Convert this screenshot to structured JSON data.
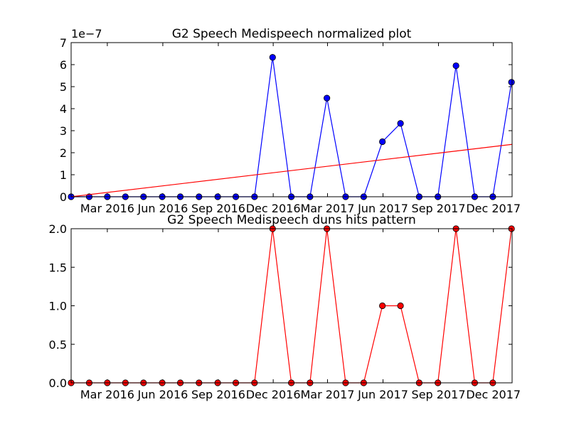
{
  "chart_data": [
    {
      "type": "line",
      "title": "G2 Speech Medispeech normalized plot",
      "xlabel": "",
      "ylabel": "",
      "y_offset_label": "1e−7",
      "x_range": [
        "2016-01-01",
        "2018-01-01"
      ],
      "ylim": [
        0,
        7
      ],
      "yticks": [
        0,
        1,
        2,
        3,
        4,
        5,
        6,
        7
      ],
      "xticks": [
        {
          "date": "2016-03-01",
          "label": "Mar 2016"
        },
        {
          "date": "2016-06-01",
          "label": "Jun 2016"
        },
        {
          "date": "2016-09-01",
          "label": "Sep 2016"
        },
        {
          "date": "2016-12-01",
          "label": "Dec 2016"
        },
        {
          "date": "2017-03-01",
          "label": "Mar 2017"
        },
        {
          "date": "2017-06-01",
          "label": "Jun 2017"
        },
        {
          "date": "2017-09-01",
          "label": "Sep 2017"
        },
        {
          "date": "2017-12-01",
          "label": "Dec 2017"
        }
      ],
      "series": [
        {
          "color": "#0000ff",
          "marker_color": "#0000ff",
          "x": [
            "2016-01-01",
            "2016-01-31",
            "2016-03-01",
            "2016-03-31",
            "2016-04-30",
            "2016-05-31",
            "2016-06-30",
            "2016-07-31",
            "2016-08-31",
            "2016-09-30",
            "2016-10-31",
            "2016-11-30",
            "2016-12-31",
            "2017-01-31",
            "2017-02-28",
            "2017-03-31",
            "2017-04-30",
            "2017-05-31",
            "2017-06-30",
            "2017-07-31",
            "2017-08-31",
            "2017-09-30",
            "2017-10-31",
            "2017-11-30",
            "2017-12-31"
          ],
          "y": [
            0,
            0,
            0,
            0,
            0,
            0,
            0,
            0,
            0,
            0,
            0,
            6.33,
            0,
            0,
            4.48,
            0,
            0,
            2.5,
            3.33,
            0,
            0,
            5.95,
            0,
            0,
            5.2
          ]
        },
        {
          "color": "#ff0000",
          "line_only": true,
          "x": [
            "2016-01-01",
            "2018-01-01"
          ],
          "y": [
            0,
            2.38
          ]
        }
      ],
      "grid": false
    },
    {
      "type": "line",
      "title": "G2 Speech Medispeech duns hits pattern",
      "xlabel": "",
      "ylabel": "",
      "x_range": [
        "2016-01-01",
        "2018-01-01"
      ],
      "ylim": [
        0,
        2
      ],
      "yticks": [
        "0.0",
        "0.5",
        "1.0",
        "1.5",
        "2.0"
      ],
      "xticks": [
        {
          "date": "2016-03-01",
          "label": "Mar 2016"
        },
        {
          "date": "2016-06-01",
          "label": "Jun 2016"
        },
        {
          "date": "2016-09-01",
          "label": "Sep 2016"
        },
        {
          "date": "2016-12-01",
          "label": "Dec 2016"
        },
        {
          "date": "2017-03-01",
          "label": "Mar 2017"
        },
        {
          "date": "2017-06-01",
          "label": "Jun 2017"
        },
        {
          "date": "2017-09-01",
          "label": "Sep 2017"
        },
        {
          "date": "2017-12-01",
          "label": "Dec 2017"
        }
      ],
      "series": [
        {
          "color": "#ff0000",
          "marker_color": "#ff0000",
          "x": [
            "2016-01-01",
            "2016-01-31",
            "2016-03-01",
            "2016-03-31",
            "2016-04-30",
            "2016-05-31",
            "2016-06-30",
            "2016-07-31",
            "2016-08-31",
            "2016-09-30",
            "2016-10-31",
            "2016-11-30",
            "2016-12-31",
            "2017-01-31",
            "2017-02-28",
            "2017-03-31",
            "2017-04-30",
            "2017-05-31",
            "2017-06-30",
            "2017-07-31",
            "2017-08-31",
            "2017-09-30",
            "2017-10-31",
            "2017-11-30",
            "2017-12-31"
          ],
          "y": [
            0,
            0,
            0,
            0,
            0,
            0,
            0,
            0,
            0,
            0,
            0,
            2,
            0,
            0,
            2,
            0,
            0,
            1,
            1,
            0,
            0,
            2,
            0,
            0,
            2
          ]
        }
      ],
      "grid": false
    }
  ]
}
